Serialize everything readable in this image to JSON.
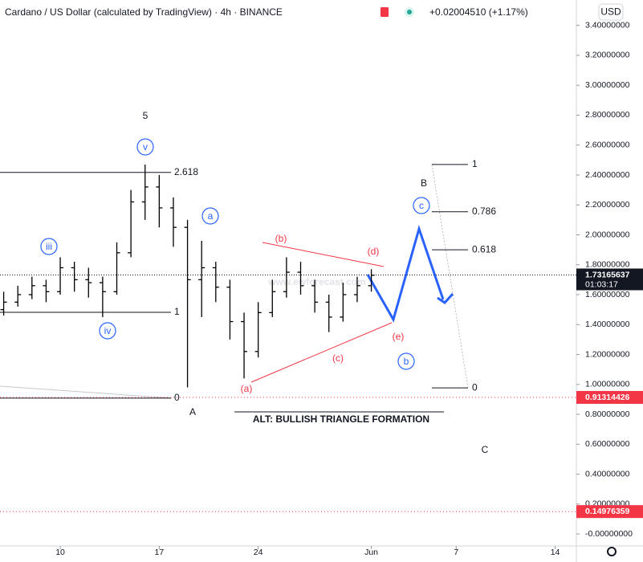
{
  "chart_data": {
    "type": "ohlc",
    "title": "Cardano / US Dollar (calculated by TradingView) · 4h · BINANCE",
    "subtitle": "+0.02004510 (+1.17%)",
    "currency_button": "USD",
    "color": "#000000",
    "x": [
      6,
      7,
      8,
      9,
      10,
      11,
      12,
      13,
      14,
      15,
      16,
      17,
      18,
      19,
      20,
      21,
      22,
      23,
      24,
      25,
      26,
      27,
      28,
      29,
      30,
      31,
      32
    ],
    "open": [
      1.5,
      1.55,
      1.6,
      1.66,
      1.62,
      1.78,
      1.7,
      1.68,
      1.62,
      1.88,
      2.22,
      2.32,
      2.18,
      2.05,
      1.7,
      1.78,
      1.65,
      1.42,
      1.22,
      1.48,
      1.62,
      1.75,
      1.66,
      1.55,
      1.45,
      1.6,
      1.66
    ],
    "high": [
      1.62,
      1.66,
      1.72,
      1.7,
      1.85,
      1.82,
      1.78,
      1.72,
      1.95,
      2.3,
      2.47,
      2.4,
      2.25,
      2.1,
      1.96,
      1.82,
      1.7,
      1.48,
      1.55,
      1.7,
      1.85,
      1.82,
      1.7,
      1.6,
      1.68,
      1.72,
      1.77
    ],
    "low": [
      1.46,
      1.52,
      1.57,
      1.55,
      1.6,
      1.62,
      1.58,
      1.45,
      1.6,
      1.85,
      2.1,
      2.05,
      1.92,
      0.98,
      1.45,
      1.55,
      1.3,
      1.04,
      1.18,
      1.45,
      1.58,
      1.6,
      1.48,
      1.35,
      1.42,
      1.55,
      1.62
    ],
    "close": [
      1.55,
      1.6,
      1.66,
      1.62,
      1.78,
      1.7,
      1.68,
      1.62,
      1.88,
      2.22,
      2.32,
      2.18,
      2.05,
      1.7,
      1.78,
      1.65,
      1.42,
      1.22,
      1.48,
      1.62,
      1.75,
      1.66,
      1.55,
      1.45,
      1.6,
      1.66,
      1.73
    ],
    "xlim": [
      5.74,
      46.5
    ],
    "xticks": [
      10,
      17,
      24,
      {
        "value": 32,
        "label": "Jun"
      },
      {
        "value": 38,
        "label": "7"
      },
      {
        "value": 45,
        "label": "14"
      }
    ],
    "ylim": [
      -0.08,
      3.57
    ],
    "yticks": [
      {
        "value": 0,
        "label": "-0.00000000"
      },
      {
        "value": 0.2,
        "label": "0.20000000"
      },
      {
        "value": 0.4,
        "label": "0.40000000"
      },
      {
        "value": 0.6,
        "label": "0.60000000"
      },
      {
        "value": 0.8,
        "label": "0.80000000"
      },
      {
        "value": 1.0,
        "label": "1.00000000"
      },
      {
        "value": 1.2,
        "label": "1.20000000"
      },
      {
        "value": 1.4,
        "label": "1.40000000"
      },
      {
        "value": 1.6,
        "label": "1.60000000"
      },
      {
        "value": 1.8,
        "label": "1.80000000"
      },
      {
        "value": 2.0,
        "label": "2.00000000"
      },
      {
        "value": 2.2,
        "label": "2.20000000"
      },
      {
        "value": 2.4,
        "label": "2.40000000"
      },
      {
        "value": 2.6,
        "label": "2.60000000"
      },
      {
        "value": 2.8,
        "label": "2.80000000"
      },
      {
        "value": 3.0,
        "label": "3.00000000"
      },
      {
        "value": 3.2,
        "label": "3.20000000"
      },
      {
        "value": 3.4,
        "label": "3.40000000"
      }
    ],
    "grid": false,
    "current_price": 1.73165637,
    "countdown": "01:03:17",
    "alert_lines": [
      0.91314426,
      0.14976359
    ],
    "fib_left": {
      "levels": [
        2.618,
        1,
        0
      ],
      "prices": [
        2.417,
        1.482,
        0.908
      ]
    },
    "fib_right": {
      "levels": [
        1,
        0.786,
        0.618,
        0
      ],
      "prices": [
        2.47,
        2.154,
        1.9,
        0.977
      ]
    },
    "wave_labels": [
      "5",
      "v",
      "iii",
      "iv",
      "a",
      "A",
      "B",
      "C",
      "(a)",
      "(b)",
      "(c)",
      "(d)",
      "(e)",
      "c",
      "b"
    ],
    "note": "ALT: BULLISH TRIANGLE FORMATION",
    "watermark": "www.ewforecast.com"
  }
}
